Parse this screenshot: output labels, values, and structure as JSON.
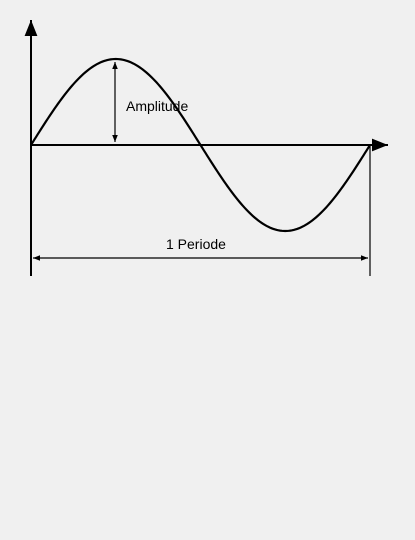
{
  "diagram": {
    "amplitude_label": "Amplitude",
    "period_label": "1 Periode",
    "colors": {
      "background": "#f0f0f0",
      "stroke": "#000000"
    },
    "icons": {
      "axis_arrow": "arrowhead-icon",
      "dimension_arrow": "double-arrow-icon"
    }
  }
}
